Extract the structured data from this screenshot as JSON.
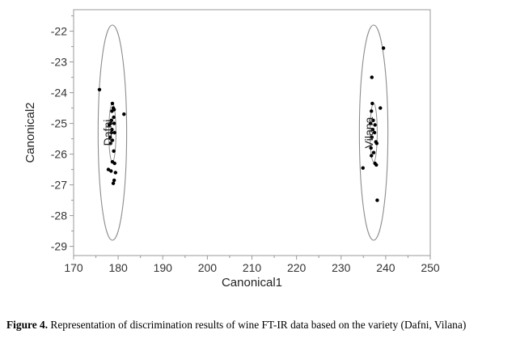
{
  "chart_data": {
    "type": "scatter",
    "xlabel": "Canonical1",
    "ylabel": "Canonical2",
    "xlim": [
      170,
      250
    ],
    "ylim": [
      -29.3,
      -21.3
    ],
    "x_ticks": [
      170,
      180,
      190,
      200,
      210,
      220,
      230,
      240,
      250
    ],
    "y_ticks": [
      -22,
      -23,
      -24,
      -25,
      -26,
      -27,
      -28,
      -29
    ],
    "grid": false,
    "groups": [
      {
        "label": "Dafni",
        "center": [
          178.7,
          -25.3
        ],
        "ellipse_outer": {
          "rx": 3.2,
          "ry": 3.5
        },
        "ellipse_inner": {
          "rx": 0.8,
          "ry": 0.95
        },
        "points": [
          [
            175.8,
            -23.9
          ],
          [
            178.7,
            -24.35
          ],
          [
            178.9,
            -24.5
          ],
          [
            179.1,
            -24.55
          ],
          [
            178.6,
            -24.6
          ],
          [
            179.0,
            -24.8
          ],
          [
            181.3,
            -24.7
          ],
          [
            178.5,
            -24.9
          ],
          [
            178.3,
            -25.0
          ],
          [
            178.0,
            -25.05
          ],
          [
            179.1,
            -25.0
          ],
          [
            178.6,
            -25.2
          ],
          [
            178.5,
            -25.3
          ],
          [
            179.2,
            -25.3
          ],
          [
            178.2,
            -25.45
          ],
          [
            178.7,
            -25.55
          ],
          [
            178.3,
            -25.65
          ],
          [
            179.0,
            -25.9
          ],
          [
            178.7,
            -26.25
          ],
          [
            179.2,
            -26.3
          ],
          [
            177.8,
            -26.5
          ],
          [
            178.4,
            -26.55
          ],
          [
            179.4,
            -26.6
          ],
          [
            179.1,
            -26.85
          ],
          [
            178.9,
            -26.95
          ]
        ]
      },
      {
        "label": "Vilana",
        "center": [
          237.3,
          -25.3
        ],
        "ellipse_outer": {
          "rx": 3.2,
          "ry": 3.5
        },
        "ellipse_inner": {
          "rx": 0.8,
          "ry": 0.95
        },
        "points": [
          [
            239.5,
            -22.55
          ],
          [
            236.9,
            -23.5
          ],
          [
            237.0,
            -24.35
          ],
          [
            238.8,
            -24.5
          ],
          [
            236.8,
            -24.6
          ],
          [
            237.2,
            -24.9
          ],
          [
            236.6,
            -25.0
          ],
          [
            237.6,
            -25.05
          ],
          [
            237.1,
            -25.2
          ],
          [
            237.5,
            -25.3
          ],
          [
            236.9,
            -25.45
          ],
          [
            237.8,
            -25.6
          ],
          [
            238.0,
            -25.65
          ],
          [
            236.7,
            -25.8
          ],
          [
            237.3,
            -25.95
          ],
          [
            236.8,
            -26.05
          ],
          [
            237.6,
            -26.3
          ],
          [
            237.9,
            -26.35
          ],
          [
            234.9,
            -26.45
          ],
          [
            238.1,
            -27.5
          ]
        ]
      }
    ]
  },
  "caption": {
    "label": "Figure 4.",
    "text": " Representation of discrimination results of wine FT-IR data based on the variety (Dafni, Vilana)"
  }
}
